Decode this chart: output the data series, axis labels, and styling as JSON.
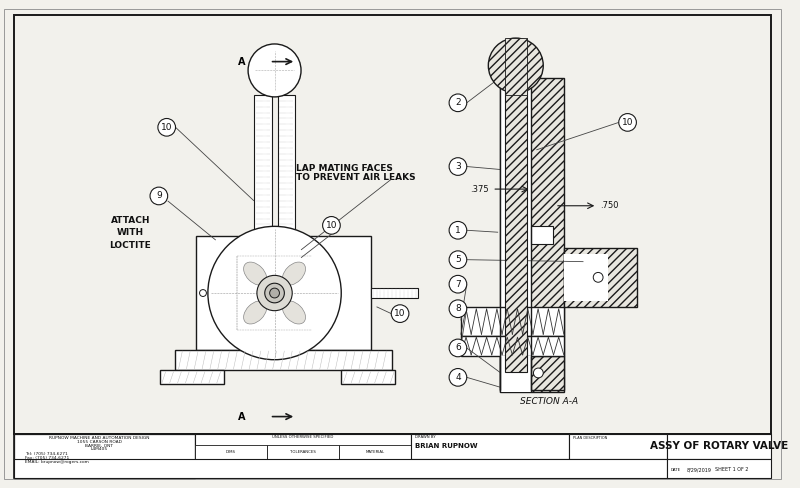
{
  "title": "ASSY OF ROTARY VALVE",
  "bg": "#f2f1ec",
  "lc": "#1a1a1a",
  "company_name": "RUPNOW MACHINE AND AUTOMATION DESIGN",
  "company_addr1": "1055 CARSON ROAD",
  "company_addr2": "BARRIE, ONT",
  "company_addr3": "L4M405",
  "company_tel": "Tel: (705) 734-6271",
  "company_fax": "Fax: (705) 734-6271",
  "company_email": "EMAIL: brupnow@rogers.com",
  "section_label": "SECTION A-A",
  "note_text1": "LAP MATING FACES",
  "note_text2": "TO PREVENT AIR LEAKS",
  "attach_text": "ATTACH\nWITH\nLOCTITE",
  "dim_375": ".375",
  "dim_750": ".750",
  "sheet_info": "SHEET 1 OF 2",
  "date_info": "8/29/2019",
  "drawn_by": "BRIAN RUPNOW",
  "unless_text": "UNLESS OTHERWISE SPECIFIED",
  "dims_label": "DIMS",
  "tol_label": "TOLERANCES",
  "mat_label": "MATERIAL",
  "drawn_label": "DRAWN BY",
  "date_label": "DATE",
  "hatch_color": "#555555",
  "hatch_bg": "#e8e6df"
}
